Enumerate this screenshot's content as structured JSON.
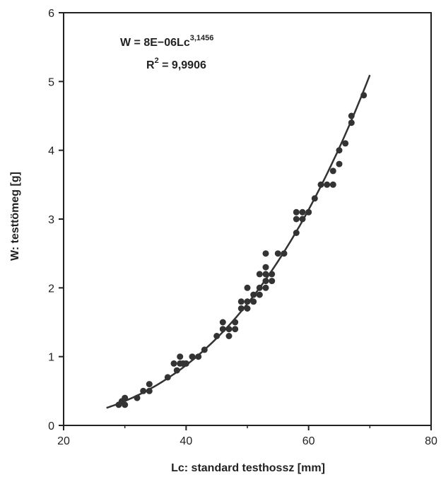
{
  "chart_data": {
    "type": "scatter",
    "xlabel": "Lc: standard testhossz [mm]",
    "ylabel": "W: testtömeg [g]",
    "xlim": [
      20,
      80
    ],
    "ylim": [
      0,
      6
    ],
    "xticks": [
      "20",
      "40",
      "60",
      "80"
    ],
    "yticks": [
      "0",
      "1",
      "2",
      "3",
      "4",
      "5",
      "6"
    ],
    "grid": false,
    "annotations": {
      "equation_prefix": "W = 8E−06Lc",
      "equation_exponent": "3,1456",
      "r2_prefix": "R",
      "r2_exponent": "2",
      "r2_suffix": " = 9,9906"
    },
    "points": [
      [
        29,
        0.3
      ],
      [
        29.5,
        0.35
      ],
      [
        30,
        0.3
      ],
      [
        30,
        0.4
      ],
      [
        32,
        0.4
      ],
      [
        33,
        0.5
      ],
      [
        34,
        0.5
      ],
      [
        34,
        0.6
      ],
      [
        37,
        0.7
      ],
      [
        38,
        0.9
      ],
      [
        38.5,
        0.8
      ],
      [
        39,
        0.9
      ],
      [
        39,
        1.0
      ],
      [
        39.5,
        0.9
      ],
      [
        40,
        0.9
      ],
      [
        41,
        1.0
      ],
      [
        42,
        1.0
      ],
      [
        43,
        1.1
      ],
      [
        45,
        1.3
      ],
      [
        46,
        1.4
      ],
      [
        46,
        1.5
      ],
      [
        47,
        1.3
      ],
      [
        47,
        1.4
      ],
      [
        48,
        1.4
      ],
      [
        48,
        1.5
      ],
      [
        49,
        1.7
      ],
      [
        49,
        1.8
      ],
      [
        50,
        1.7
      ],
      [
        50,
        1.8
      ],
      [
        50,
        2.0
      ],
      [
        51,
        1.8
      ],
      [
        51,
        1.9
      ],
      [
        52,
        1.9
      ],
      [
        52,
        2.0
      ],
      [
        52,
        2.2
      ],
      [
        53,
        2.1
      ],
      [
        53,
        2.2
      ],
      [
        53,
        2.3
      ],
      [
        53,
        2.5
      ],
      [
        53,
        2.0
      ],
      [
        54,
        2.1
      ],
      [
        54,
        2.2
      ],
      [
        55,
        2.5
      ],
      [
        56,
        2.5
      ],
      [
        58,
        2.8
      ],
      [
        58,
        3.0
      ],
      [
        58,
        3.1
      ],
      [
        59,
        3.1
      ],
      [
        59,
        3.0
      ],
      [
        60,
        3.1
      ],
      [
        61,
        3.3
      ],
      [
        62,
        3.5
      ],
      [
        63,
        3.5
      ],
      [
        64,
        3.5
      ],
      [
        64,
        3.7
      ],
      [
        65,
        3.8
      ],
      [
        65,
        4.0
      ],
      [
        66,
        4.1
      ],
      [
        67,
        4.4
      ],
      [
        67,
        4.5
      ],
      [
        69,
        4.8
      ]
    ],
    "curve": {
      "a": 8e-06,
      "b": 3.1456,
      "x_range": [
        27,
        70
      ]
    }
  }
}
